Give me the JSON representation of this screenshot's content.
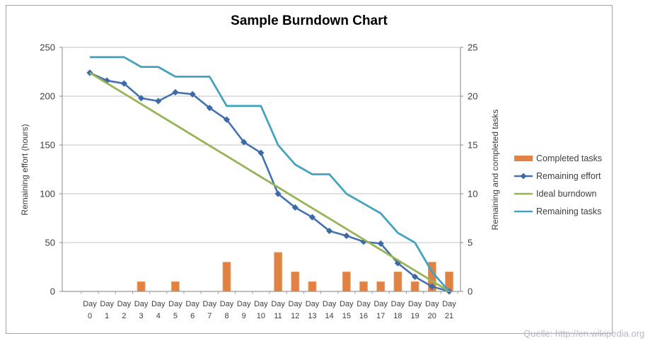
{
  "title": "Sample Burndown Chart",
  "source_note": "Quelle: http://en.wikipedia.org",
  "colors": {
    "bar_orange": "#df8243",
    "effort_blue": "#4472b0",
    "effort_marker_blue": "#3e69a8",
    "ideal_green": "#96b455",
    "tasks_teal": "#44a3be",
    "gridline": "#c3c3c3",
    "axis_line": "#9b9b9b",
    "tick_text": "#3e3e3e",
    "frame_border": "#a3a3a3",
    "source_text": "#b6b9c9"
  },
  "chart_data": {
    "type": "bar",
    "subtype": "combo-bar-line",
    "title": "Sample Burndown Chart",
    "categories": [
      "Day 0",
      "Day 1",
      "Day 2",
      "Day 3",
      "Day 4",
      "Day 5",
      "Day 6",
      "Day 7",
      "Day 8",
      "Day 9",
      "Day 10",
      "Day 11",
      "Day 12",
      "Day 13",
      "Day 14",
      "Day 15",
      "Day 16",
      "Day 17",
      "Day 18",
      "Day 19",
      "Day 20",
      "Day 21"
    ],
    "series": [
      {
        "name": "Completed tasks",
        "kind": "bar",
        "axis": "right",
        "color": "#df8243",
        "values": [
          0,
          0,
          0,
          1,
          0,
          1,
          0,
          0,
          3,
          0,
          0,
          4,
          2,
          1,
          0,
          2,
          1,
          1,
          2,
          1,
          3,
          2
        ]
      },
      {
        "name": "Remaining effort",
        "kind": "line",
        "marker": "diamond",
        "axis": "left",
        "color": "#4472b0",
        "marker_color": "#3e69a8",
        "values": [
          224,
          216,
          213,
          198,
          195,
          204,
          202,
          188,
          176,
          153,
          142,
          100,
          86,
          76,
          62,
          57,
          51,
          49,
          29,
          15,
          5,
          0
        ]
      },
      {
        "name": "Ideal burndown",
        "kind": "line",
        "axis": "left",
        "color": "#96b455",
        "values": [
          224,
          213.3,
          202.7,
          192,
          181.3,
          170.7,
          160,
          149.3,
          138.7,
          128,
          117.3,
          106.7,
          96,
          85.3,
          74.7,
          64,
          53.3,
          42.7,
          32,
          21.3,
          10.7,
          0
        ]
      },
      {
        "name": "Remaining tasks",
        "kind": "line",
        "axis": "right",
        "color": "#44a3be",
        "values": [
          24,
          24,
          24,
          23,
          23,
          22,
          22,
          22,
          19,
          19,
          19,
          15,
          13,
          12,
          12,
          10,
          9,
          8,
          6,
          5,
          2,
          0
        ]
      }
    ],
    "left_axis": {
      "label": "Remaining effort (hours)",
      "ticks": [
        0,
        50,
        100,
        150,
        200,
        250
      ],
      "range": [
        0,
        250
      ]
    },
    "right_axis": {
      "label": "Remaining and completed tasks",
      "ticks": [
        0,
        5,
        10,
        15,
        20,
        25
      ],
      "range": [
        0,
        25
      ]
    },
    "legend": {
      "position": "right",
      "entries": [
        "Completed tasks",
        "Remaining effort",
        "Ideal burndown",
        "Remaining tasks"
      ]
    },
    "grid": true
  }
}
